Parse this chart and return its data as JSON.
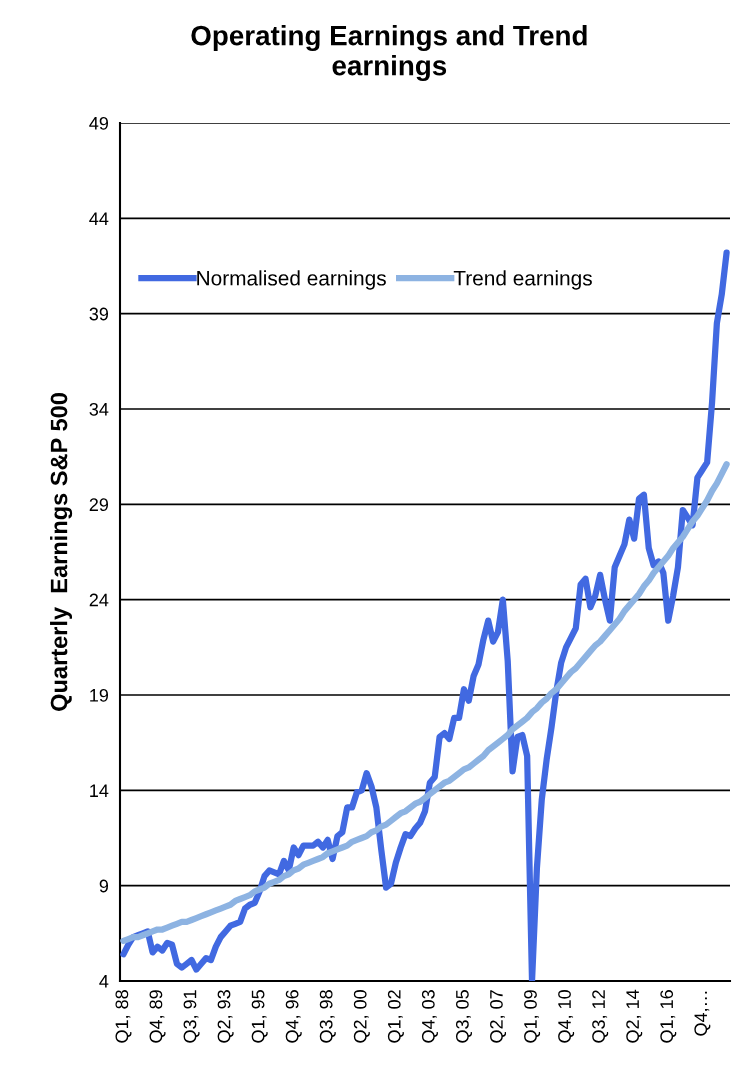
{
  "chart_data": {
    "type": "line",
    "title": "Operating Earnings and Trend earnings",
    "ylabel": "Quarterly  Earnings S&P 500",
    "categories": [
      "Q1, 88",
      null,
      null,
      null,
      null,
      null,
      null,
      "Q4, 89",
      null,
      null,
      null,
      null,
      null,
      null,
      "Q3, 91",
      null,
      null,
      null,
      null,
      null,
      null,
      "Q2, 93",
      null,
      null,
      null,
      null,
      null,
      null,
      "Q1, 95",
      null,
      null,
      null,
      null,
      null,
      null,
      "Q4, 96",
      null,
      null,
      null,
      null,
      null,
      null,
      "Q3, 98",
      null,
      null,
      null,
      null,
      null,
      null,
      "Q2, 00",
      null,
      null,
      null,
      null,
      null,
      null,
      "Q1, 02",
      null,
      null,
      null,
      null,
      null,
      null,
      "Q4, 03",
      null,
      null,
      null,
      null,
      null,
      null,
      "Q3, 05",
      null,
      null,
      null,
      null,
      null,
      null,
      "Q2, 07",
      null,
      null,
      null,
      null,
      null,
      null,
      "Q1, 09",
      null,
      null,
      null,
      null,
      null,
      null,
      "Q4, 10",
      null,
      null,
      null,
      null,
      null,
      null,
      "Q3, 12",
      null,
      null,
      null,
      null,
      null,
      null,
      "Q2, 14",
      null,
      null,
      null,
      null,
      null,
      null,
      "Q1, 16",
      null,
      null,
      null,
      null,
      null,
      null,
      "Q4,…",
      null,
      null,
      null,
      null,
      null
    ],
    "series": [
      {
        "name": "Normalised earnings",
        "color": "#4169e1",
        "values": [
          5.4,
          5.9,
          6.3,
          6.4,
          6.5,
          6.6,
          5.5,
          5.8,
          5.6,
          6.0,
          5.9,
          4.9,
          4.7,
          4.9,
          5.1,
          4.6,
          4.9,
          5.2,
          5.1,
          5.8,
          6.3,
          6.6,
          6.9,
          7.0,
          7.1,
          7.8,
          8.0,
          8.1,
          8.7,
          9.5,
          9.8,
          9.7,
          9.6,
          10.3,
          9.8,
          11.0,
          10.6,
          11.1,
          11.1,
          11.1,
          11.3,
          11.0,
          11.4,
          10.4,
          11.6,
          11.8,
          13.1,
          13.1,
          13.9,
          14.0,
          14.9,
          14.2,
          13.1,
          10.9,
          8.9,
          9.1,
          10.2,
          11.0,
          11.7,
          11.6,
          12.0,
          12.3,
          12.9,
          14.4,
          14.7,
          16.8,
          17.0,
          16.7,
          17.8,
          17.8,
          19.3,
          18.7,
          20.0,
          20.6,
          21.9,
          22.9,
          21.8,
          22.3,
          24.0,
          20.8,
          15.0,
          16.8,
          16.9,
          15.8,
          4.0,
          9.9,
          13.5,
          15.6,
          17.3,
          19.2,
          20.7,
          21.5,
          22.0,
          22.5,
          24.8,
          25.1,
          23.6,
          24.2,
          25.3,
          24.0,
          22.9,
          25.7,
          26.3,
          26.9,
          28.2,
          27.2,
          29.3,
          29.5,
          26.7,
          25.8,
          26.0,
          25.4,
          22.9,
          24.2,
          25.7,
          28.7,
          28.3,
          27.9,
          30.4,
          30.8,
          31.2,
          34.3,
          38.5,
          40.0,
          42.2
        ]
      },
      {
        "name": "Trend earnings",
        "color": "#8db3e2",
        "values": [
          6.1,
          6.2,
          6.3,
          6.3,
          6.4,
          6.5,
          6.6,
          6.7,
          6.7,
          6.8,
          6.9,
          7.0,
          7.1,
          7.1,
          7.2,
          7.3,
          7.4,
          7.5,
          7.6,
          7.7,
          7.8,
          7.9,
          8.0,
          8.2,
          8.3,
          8.4,
          8.5,
          8.7,
          8.8,
          8.9,
          9.1,
          9.2,
          9.3,
          9.5,
          9.6,
          9.8,
          9.9,
          10.1,
          10.2,
          10.3,
          10.4,
          10.5,
          10.7,
          10.8,
          10.9,
          11.0,
          11.1,
          11.3,
          11.4,
          11.5,
          11.6,
          11.8,
          11.9,
          12.1,
          12.2,
          12.4,
          12.6,
          12.8,
          12.9,
          13.1,
          13.3,
          13.4,
          13.6,
          13.8,
          14.0,
          14.2,
          14.4,
          14.5,
          14.7,
          14.9,
          15.1,
          15.2,
          15.4,
          15.6,
          15.8,
          16.1,
          16.3,
          16.5,
          16.7,
          16.9,
          17.2,
          17.4,
          17.6,
          17.8,
          18.1,
          18.3,
          18.6,
          18.8,
          19.1,
          19.3,
          19.6,
          19.9,
          20.2,
          20.4,
          20.7,
          21.0,
          21.3,
          21.6,
          21.8,
          22.1,
          22.4,
          22.7,
          23.0,
          23.4,
          23.7,
          24.0,
          24.3,
          24.7,
          25.0,
          25.4,
          25.7,
          26.0,
          26.3,
          26.7,
          27.0,
          27.3,
          27.7,
          28.1,
          28.4,
          28.8,
          29.2,
          29.7,
          30.1,
          30.6,
          31.1
        ]
      }
    ],
    "ylim": [
      4,
      49
    ],
    "yticks": [
      4,
      9,
      14,
      19,
      24,
      29,
      34,
      39,
      44,
      49
    ],
    "grid": "y",
    "legend": "top left",
    "marker": "none",
    "line_style": "solid"
  }
}
